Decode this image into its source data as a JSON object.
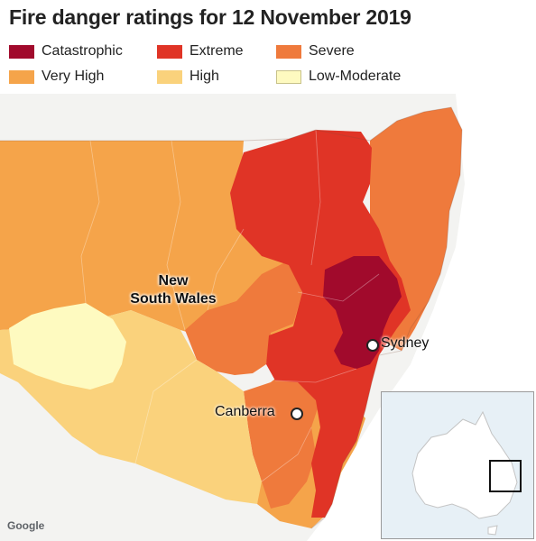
{
  "title": "Fire danger ratings for 12 November 2019",
  "legend": [
    {
      "label": "Catastrophic",
      "color": "#a10a2c"
    },
    {
      "label": "Extreme",
      "color": "#e03426"
    },
    {
      "label": "Severe",
      "color": "#ef7a3c"
    },
    {
      "label": "Very High",
      "color": "#f5a44a"
    },
    {
      "label": "High",
      "color": "#fad27c"
    },
    {
      "label": "Low-Moderate",
      "color": "#fefac0"
    }
  ],
  "map": {
    "region_label": "New\nSouth Wales",
    "cities": {
      "sydney": "Sydney",
      "canberra": "Canberra"
    },
    "attribution": "Google"
  }
}
